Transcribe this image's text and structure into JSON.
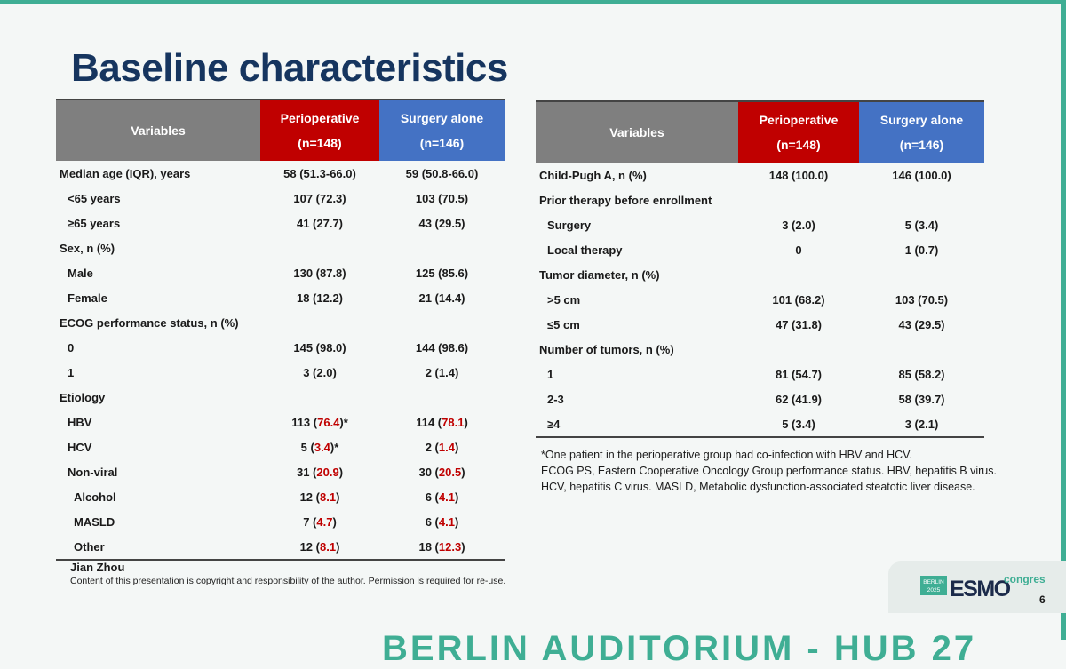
{
  "title": "Baseline characteristics",
  "colors": {
    "perioperative": "#c00000",
    "surgery_alone": "#4472c4",
    "variables": "#7f7f7f",
    "highlight": "#c00000",
    "title": "#16355f",
    "accent": "#3fae94"
  },
  "left_table": {
    "headers": {
      "variables": "Variables",
      "perioperative": "Perioperative",
      "perioperative_n": "(n=148)",
      "surgery": "Surgery alone",
      "surgery_n": "(n=146)"
    },
    "rows": [
      {
        "label": "Median age (IQR), years",
        "level": 0,
        "p_a": "58 (51.3-66.0)",
        "p_b": "",
        "p_c": "",
        "s_a": "59 (50.8-66.0)",
        "s_b": "",
        "s_c": ""
      },
      {
        "label": "<65 years",
        "level": 1,
        "p_a": "107 (72.3)",
        "p_b": "",
        "p_c": "",
        "s_a": "103 (70.5)",
        "s_b": "",
        "s_c": ""
      },
      {
        "label": "≥65 years",
        "level": 1,
        "p_a": "41 (27.7)",
        "p_b": "",
        "p_c": "",
        "s_a": "43 (29.5)",
        "s_b": "",
        "s_c": ""
      },
      {
        "label": "Sex, n (%)",
        "level": 0,
        "p_a": "",
        "p_b": "",
        "p_c": "",
        "s_a": "",
        "s_b": "",
        "s_c": ""
      },
      {
        "label": "Male",
        "level": 1,
        "p_a": "130 (87.8)",
        "p_b": "",
        "p_c": "",
        "s_a": "125 (85.6)",
        "s_b": "",
        "s_c": ""
      },
      {
        "label": "Female",
        "level": 1,
        "p_a": "18 (12.2)",
        "p_b": "",
        "p_c": "",
        "s_a": "21 (14.4)",
        "s_b": "",
        "s_c": ""
      },
      {
        "label": "ECOG performance status, n (%)",
        "level": 0,
        "p_a": "",
        "p_b": "",
        "p_c": "",
        "s_a": "",
        "s_b": "",
        "s_c": ""
      },
      {
        "label": "0",
        "level": 1,
        "p_a": "145 (98.0)",
        "p_b": "",
        "p_c": "",
        "s_a": "144 (98.6)",
        "s_b": "",
        "s_c": ""
      },
      {
        "label": "1",
        "level": 1,
        "p_a": "3 (2.0)",
        "p_b": "",
        "p_c": "",
        "s_a": "2 (1.4)",
        "s_b": "",
        "s_c": ""
      },
      {
        "label": "Etiology",
        "level": 0,
        "p_a": "",
        "p_b": "",
        "p_c": "",
        "s_a": "",
        "s_b": "",
        "s_c": ""
      },
      {
        "label": "HBV",
        "level": 1,
        "p_a": "113 (",
        "p_b": "76.4",
        "p_c": ")*",
        "s_a": "114 (",
        "s_b": "78.1",
        "s_c": ")"
      },
      {
        "label": "HCV",
        "level": 1,
        "p_a": "5 (",
        "p_b": "3.4",
        "p_c": ")*",
        "s_a": "2 (",
        "s_b": "1.4",
        "s_c": ")"
      },
      {
        "label": "Non-viral",
        "level": 1,
        "p_a": "31 (",
        "p_b": "20.9",
        "p_c": ")",
        "s_a": "30 (",
        "s_b": "20.5",
        "s_c": ")"
      },
      {
        "label": "Alcohol",
        "level": 2,
        "p_a": "12 (",
        "p_b": "8.1",
        "p_c": ")",
        "s_a": "6 (",
        "s_b": "4.1",
        "s_c": ")"
      },
      {
        "label": "MASLD",
        "level": 2,
        "p_a": "7 (",
        "p_b": "4.7",
        "p_c": ")",
        "s_a": "6 (",
        "s_b": "4.1",
        "s_c": ")"
      },
      {
        "label": "Other",
        "level": 2,
        "p_a": "12 (",
        "p_b": "8.1",
        "p_c": ")",
        "s_a": "18 (",
        "s_b": "12.3",
        "s_c": ")"
      }
    ]
  },
  "right_table": {
    "headers": {
      "variables": "Variables",
      "perioperative": "Perioperative",
      "perioperative_n": "(n=148)",
      "surgery": "Surgery alone",
      "surgery_n": "(n=146)"
    },
    "rows": [
      {
        "label": "Child-Pugh A, n (%)",
        "level": 0,
        "p": "148 (100.0)",
        "s": "146 (100.0)"
      },
      {
        "label": "Prior therapy before enrollment",
        "level": 0,
        "p": "",
        "s": ""
      },
      {
        "label": "Surgery",
        "level": 1,
        "p": "3 (2.0)",
        "s": "5 (3.4)"
      },
      {
        "label": "Local therapy",
        "level": 1,
        "p": "0",
        "s": "1 (0.7)"
      },
      {
        "label": "Tumor diameter, n (%)",
        "level": 0,
        "p": "",
        "s": ""
      },
      {
        "label": ">5 cm",
        "level": 1,
        "p": "101 (68.2)",
        "s": "103 (70.5)"
      },
      {
        "label": "≤5 cm",
        "level": 1,
        "p": "47 (31.8)",
        "s": "43 (29.5)"
      },
      {
        "label": "Number of tumors, n (%)",
        "level": 0,
        "p": "",
        "s": ""
      },
      {
        "label": "1",
        "level": 1,
        "p": "81 (54.7)",
        "s": "85 (58.2)"
      },
      {
        "label": "2-3",
        "level": 1,
        "p": "62 (41.9)",
        "s": "58 (39.7)"
      },
      {
        "label": "≥4",
        "level": 1,
        "p": "5 (3.4)",
        "s": "3 (2.1)"
      }
    ]
  },
  "footnotes": [
    "*One patient in the perioperative group had co-infection with HBV and HCV.",
    "ECOG PS, Eastern Cooperative Oncology Group performance status. HBV, hepatitis B virus.",
    "HCV, hepatitis C virus. MASLD, Metabolic dysfunction-associated steatotic liver disease."
  ],
  "author": "Jian Zhou",
  "copyright": "Content of this presentation is copyright and responsibility of the author. Permission is required for re-use.",
  "logo": {
    "city": "BERLIN",
    "year": "2025",
    "brand": "ESMO",
    "suffix": "congress"
  },
  "page_number": "6",
  "bottom_banner": "BERLIN AUDITORIUM - HUB 27"
}
